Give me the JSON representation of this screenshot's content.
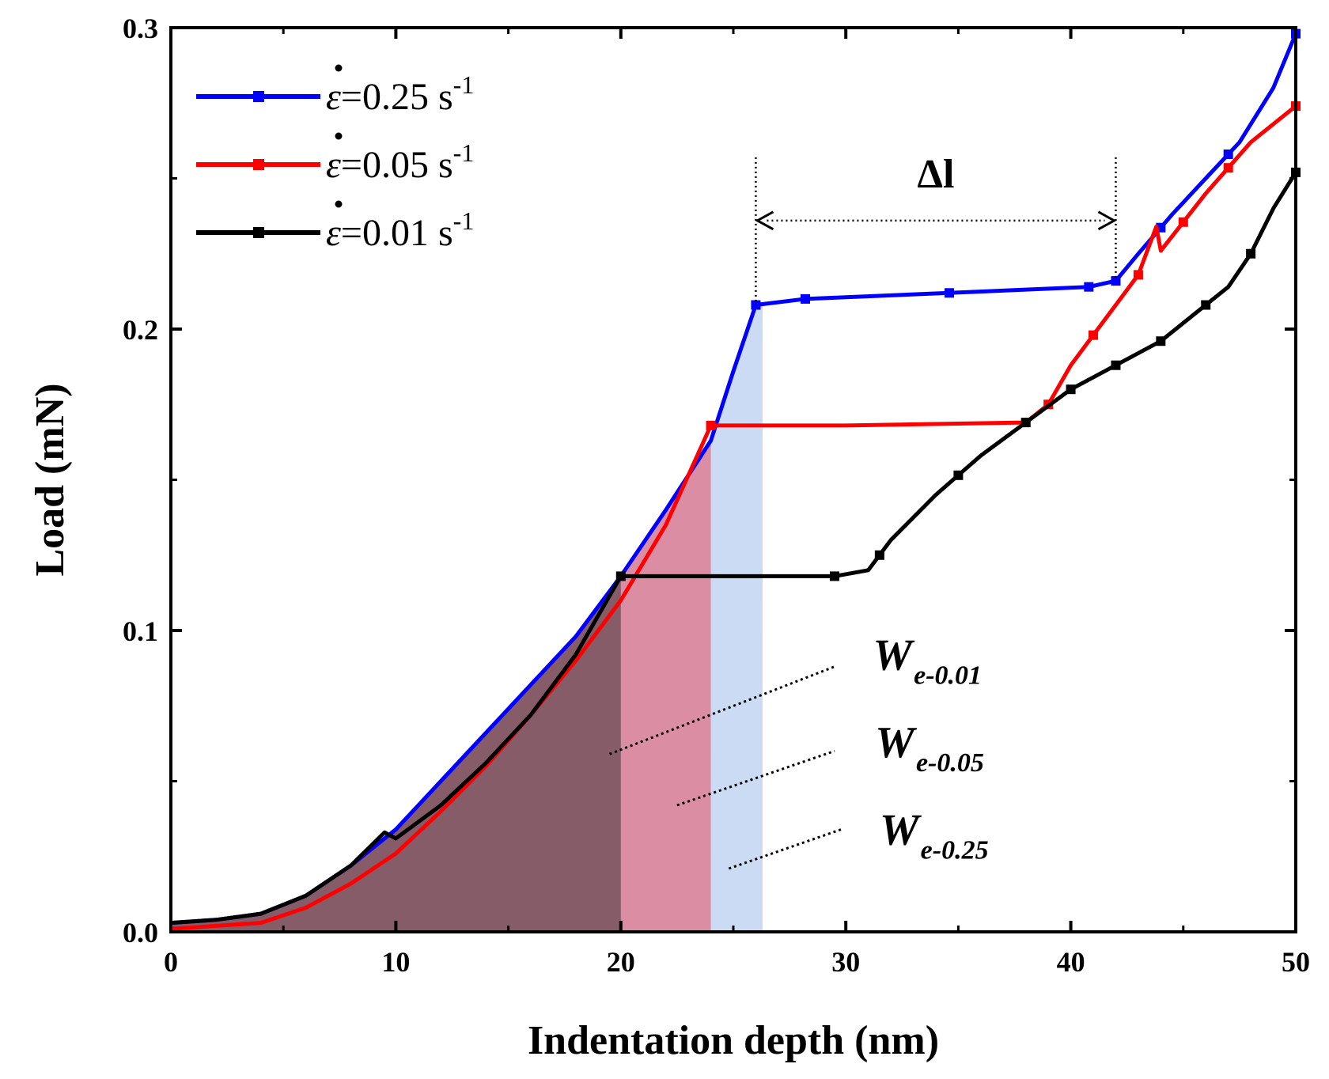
{
  "chart_data": {
    "type": "line",
    "title": "",
    "xlabel": "Indentation depth (nm)",
    "ylabel": "Load (mN)",
    "xlim": [
      0,
      50
    ],
    "ylim": [
      0,
      0.3
    ],
    "xticks": [
      "0",
      "10",
      "20",
      "30",
      "40",
      "50"
    ],
    "yticks": [
      "0.0",
      "0.1",
      "0.2",
      "0.3"
    ],
    "series": [
      {
        "name": "0.25",
        "legend_prefix": "ε",
        "legend_label": "=0.25 s",
        "legend_sup": "-1",
        "color": "#0000ff",
        "x": [
          0,
          2,
          4,
          6,
          8,
          10,
          12,
          14,
          16,
          18,
          20,
          22,
          24,
          25,
          26,
          28.2,
          34.6,
          40.8,
          42,
          43,
          44.5,
          46,
          47.5,
          49,
          50
        ],
        "y": [
          0.003,
          0.004,
          0.006,
          0.012,
          0.022,
          0.034,
          0.05,
          0.066,
          0.082,
          0.098,
          0.118,
          0.14,
          0.163,
          0.186,
          0.208,
          0.21,
          0.212,
          0.214,
          0.216,
          0.225,
          0.238,
          0.25,
          0.262,
          0.28,
          0.298
        ],
        "markers_x": [
          26,
          28.2,
          34.6,
          40.8,
          42,
          44,
          47,
          50
        ]
      },
      {
        "name": "0.05",
        "legend_prefix": "ε",
        "legend_label": "=0.05 s",
        "legend_sup": "-1",
        "color": "#ff0000",
        "x": [
          0,
          2,
          4,
          6,
          8,
          10,
          12,
          14,
          16,
          18,
          20,
          22,
          24,
          30,
          38,
          39,
          40,
          41,
          42,
          43,
          43.8,
          44,
          46,
          48,
          50
        ],
        "y": [
          0.001,
          0.002,
          0.003,
          0.008,
          0.016,
          0.026,
          0.04,
          0.055,
          0.072,
          0.09,
          0.11,
          0.135,
          0.168,
          0.168,
          0.169,
          0.175,
          0.188,
          0.198,
          0.208,
          0.218,
          0.234,
          0.226,
          0.245,
          0.262,
          0.274
        ],
        "markers_x": [
          24,
          39,
          41,
          43,
          45,
          47,
          50
        ]
      },
      {
        "name": "0.01",
        "legend_prefix": "ε",
        "legend_label": "=0.01 s",
        "legend_sup": "-1",
        "color": "#000000",
        "x": [
          0,
          2,
          4,
          6,
          8,
          9.5,
          10,
          12,
          14,
          16,
          18,
          20,
          25,
          29.5,
          31,
          32,
          34,
          36,
          38,
          40,
          42,
          44,
          46,
          47,
          48,
          49,
          50
        ],
        "y": [
          0.003,
          0.004,
          0.006,
          0.012,
          0.022,
          0.033,
          0.031,
          0.042,
          0.056,
          0.072,
          0.092,
          0.118,
          0.118,
          0.118,
          0.12,
          0.13,
          0.145,
          0.158,
          0.169,
          0.18,
          0.188,
          0.196,
          0.208,
          0.214,
          0.225,
          0.24,
          0.252
        ],
        "markers_x": [
          20,
          29.5,
          31.5,
          35,
          38,
          40,
          42,
          44,
          46,
          48,
          50
        ]
      }
    ],
    "shaded_areas": [
      {
        "name": "We-0.25",
        "x_end": 26.3,
        "color": "#c7d9f2"
      },
      {
        "name": "We-0.05",
        "x_end": 24,
        "color": "#db8a9e"
      },
      {
        "name": "We-0.01",
        "x_end": 20,
        "color": "#825a66"
      }
    ],
    "annotations": [
      {
        "text": "Δl",
        "x_from": 26,
        "x_to": 42,
        "y": 0.236
      },
      {
        "w": "W",
        "sub": "e-0.01",
        "label_x": 31.2,
        "label_y": 0.087,
        "line_from": [
          19.5,
          0.059
        ],
        "line_to": [
          29.5,
          0.088
        ]
      },
      {
        "w": "W",
        "sub": "e-0.05",
        "label_x": 31.3,
        "label_y": 0.058,
        "line_from": [
          22.5,
          0.042
        ],
        "line_to": [
          29.5,
          0.06
        ]
      },
      {
        "w": "W",
        "sub": "e-0.25",
        "label_x": 31.5,
        "label_y": 0.029,
        "line_from": [
          24.8,
          0.021
        ],
        "line_to": [
          29.8,
          0.034
        ]
      }
    ]
  }
}
